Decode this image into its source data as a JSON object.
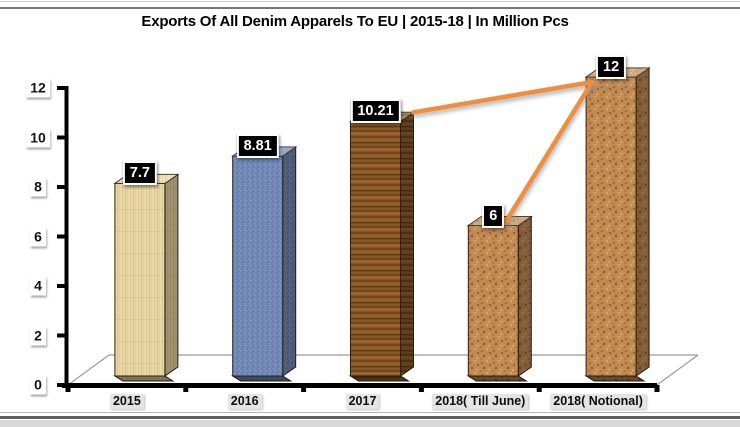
{
  "page": {
    "title": "Exports Of All Denim Apparels To EU | 2015-18 | In Million Pcs"
  },
  "chart_data": {
    "type": "bar",
    "projection": "3d",
    "title": "Exports Of All Denim Apparels To EU | 2015-18 | In Million Pcs",
    "categories": [
      "2015",
      "2016",
      "2017",
      "2018( Till June)",
      "2018( Notional)"
    ],
    "values": [
      7.7,
      8.81,
      10.21,
      6,
      12
    ],
    "data_labels": [
      "7.7",
      "8.81",
      "10.21",
      "6",
      "12"
    ],
    "xlabel": "",
    "ylabel": "",
    "ylim": [
      0,
      12
    ],
    "yticks": [
      0,
      2,
      4,
      6,
      8,
      10,
      12
    ],
    "ytick_labels": [
      "0",
      "2",
      "4",
      "6",
      "8",
      "10",
      "12"
    ],
    "grid": false,
    "legend": false,
    "axis_color": "#000000",
    "floor_line_color": "#9a9a9a",
    "bar_styles": [
      {
        "texture": "wood-light",
        "front": "#ead9a8",
        "accent1": "#d9c289",
        "accent2": "#c7a963"
      },
      {
        "texture": "denim",
        "front": "#7188b6",
        "accent1": "#8ba0c8",
        "accent2": "#5a76a6"
      },
      {
        "texture": "wood-dark",
        "front": "#8a5a28",
        "accent1": "#6b4117",
        "accent2": "#a5773a"
      },
      {
        "texture": "cork",
        "front": "#c28b54",
        "accent1": "#a26c38",
        "accent2": "#d7a670"
      },
      {
        "texture": "cork",
        "front": "#c28b54",
        "accent1": "#a26c38",
        "accent2": "#d7a670"
      }
    ],
    "annotation_line": {
      "color": "#ee8f3e",
      "segments": [
        {
          "from_category": "2017",
          "to_category": "2018( Notional)"
        },
        {
          "from_category": "2018( Till June)",
          "to_category": "2018( Notional)"
        }
      ]
    },
    "label_style": {
      "data_label_bg": "#000000",
      "data_label_text": "#ffffff",
      "xcat_bg": "#e4e4e4"
    }
  }
}
